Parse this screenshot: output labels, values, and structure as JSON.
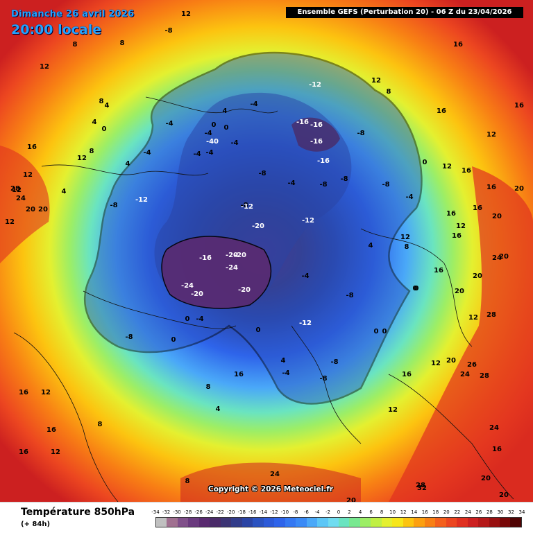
{
  "header": {
    "date": "Dimanche 26 avril 2026",
    "time": "20:00 locale",
    "run": "Ensemble GEFS  (Perturbation 20)  -  06 Z du 23/04/2026"
  },
  "footer": {
    "parameter": "Température 850hPa",
    "lead_time": "(+ 84h)",
    "copyright": "Copyright © 2026 Meteociel.fr"
  },
  "legend": {
    "ticks": [
      "-34",
      "-32",
      "-30",
      "-28",
      "-26",
      "-24",
      "-22",
      "-20",
      "-18",
      "-16",
      "-14",
      "-12",
      "-10",
      "-8",
      "-6",
      "-4",
      "-2",
      "0",
      "2",
      "4",
      "6",
      "8",
      "10",
      "12",
      "14",
      "16",
      "18",
      "20",
      "22",
      "24",
      "26",
      "28",
      "30",
      "32",
      "34"
    ],
    "colors": [
      "#c0c0c0",
      "#a07090",
      "#80508a",
      "#6a3a7e",
      "#5a2a70",
      "#4a2a68",
      "#3c3474",
      "#323c8a",
      "#2a44a4",
      "#2a52c0",
      "#2c5ad8",
      "#2e64ea",
      "#3478f2",
      "#3a8af6",
      "#4aa8f8",
      "#5cc6f6",
      "#70dcf0",
      "#6ae4c0",
      "#78e890",
      "#9cee66",
      "#c0f044",
      "#e4f030",
      "#f6e61a",
      "#fcc410",
      "#fca010",
      "#f88014",
      "#f4601c",
      "#ec4620",
      "#e03020",
      "#cc2020",
      "#b41818",
      "#981010",
      "#780808",
      "#500404"
    ]
  },
  "map": {
    "iso_labels": [
      {
        "t": "12"
      },
      {
        "t": "-8"
      },
      {
        "t": "8"
      },
      {
        "t": "16"
      },
      {
        "t": "8"
      },
      {
        "t": "12"
      },
      {
        "t": "12"
      },
      {
        "t": "8"
      },
      {
        "t": "4"
      },
      {
        "t": "8"
      },
      {
        "t": "-12"
      },
      {
        "t": "16"
      },
      {
        "t": "12"
      },
      {
        "t": "-4"
      },
      {
        "t": "8"
      },
      {
        "t": "16"
      },
      {
        "t": "4"
      },
      {
        "t": "0"
      },
      {
        "t": "-4"
      },
      {
        "t": "4"
      },
      {
        "t": "-4"
      },
      {
        "t": "-16"
      },
      {
        "t": "-16"
      },
      {
        "t": "-8"
      },
      {
        "t": "0"
      },
      {
        "t": "-4"
      },
      {
        "t": "0"
      },
      {
        "t": "-4"
      },
      {
        "t": "-40"
      },
      {
        "t": "-4"
      },
      {
        "t": "-16"
      },
      {
        "t": "0"
      },
      {
        "t": "-16"
      },
      {
        "t": "-4"
      },
      {
        "t": "16"
      },
      {
        "t": "12"
      },
      {
        "t": "4"
      },
      {
        "t": "4"
      },
      {
        "t": "12"
      },
      {
        "t": "12"
      },
      {
        "t": "-8"
      },
      {
        "t": "-8"
      },
      {
        "t": "-8"
      },
      {
        "t": "-8"
      },
      {
        "t": "-4"
      },
      {
        "t": "12"
      },
      {
        "t": "16"
      },
      {
        "t": "16"
      },
      {
        "t": "28"
      },
      {
        "t": "24"
      },
      {
        "t": "20"
      },
      {
        "t": "20"
      },
      {
        "t": "12"
      },
      {
        "t": "-8"
      },
      {
        "t": "-12"
      },
      {
        "t": "-8"
      },
      {
        "t": "-12"
      },
      {
        "t": "-4"
      },
      {
        "t": "20"
      },
      {
        "t": "16"
      },
      {
        "t": "12"
      },
      {
        "t": "16"
      },
      {
        "t": "-20"
      },
      {
        "t": "-12"
      },
      {
        "t": "4"
      },
      {
        "t": "8"
      },
      {
        "t": "12"
      },
      {
        "t": "16"
      },
      {
        "t": "20"
      },
      {
        "t": "20"
      },
      {
        "t": "-16"
      },
      {
        "t": "-20"
      },
      {
        "t": "-20"
      },
      {
        "t": "-24"
      },
      {
        "t": "-4"
      },
      {
        "t": "16"
      },
      {
        "t": "20"
      },
      {
        "t": "24"
      },
      {
        "t": "-24"
      },
      {
        "t": "-20"
      },
      {
        "t": "-20"
      },
      {
        "t": "-8"
      },
      {
        "t": "0"
      },
      {
        "t": "20"
      },
      {
        "t": "28"
      },
      {
        "t": "-12"
      },
      {
        "t": "0"
      },
      {
        "t": "-4"
      },
      {
        "t": "0"
      },
      {
        "t": "0"
      },
      {
        "t": "-8"
      },
      {
        "t": "-12"
      },
      {
        "t": "0"
      },
      {
        "t": "0"
      },
      {
        "t": "12"
      },
      {
        "t": "0"
      },
      {
        "t": "-8"
      },
      {
        "t": "4"
      },
      {
        "t": "-4"
      },
      {
        "t": "-8"
      },
      {
        "t": "12"
      },
      {
        "t": "20"
      },
      {
        "t": "26"
      },
      {
        "t": "24"
      },
      {
        "t": "28"
      },
      {
        "t": "16"
      },
      {
        "t": "8"
      },
      {
        "t": "4"
      },
      {
        "t": "12"
      },
      {
        "t": "16"
      },
      {
        "t": "16"
      },
      {
        "t": "12"
      },
      {
        "t": "24"
      },
      {
        "t": "16"
      },
      {
        "t": "16"
      },
      {
        "t": "8"
      },
      {
        "t": "28"
      },
      {
        "t": "24"
      },
      {
        "t": "20"
      },
      {
        "t": "32"
      },
      {
        "t": "16"
      },
      {
        "t": "8"
      },
      {
        "t": "12"
      },
      {
        "t": "20"
      },
      {
        "t": "20"
      }
    ]
  }
}
